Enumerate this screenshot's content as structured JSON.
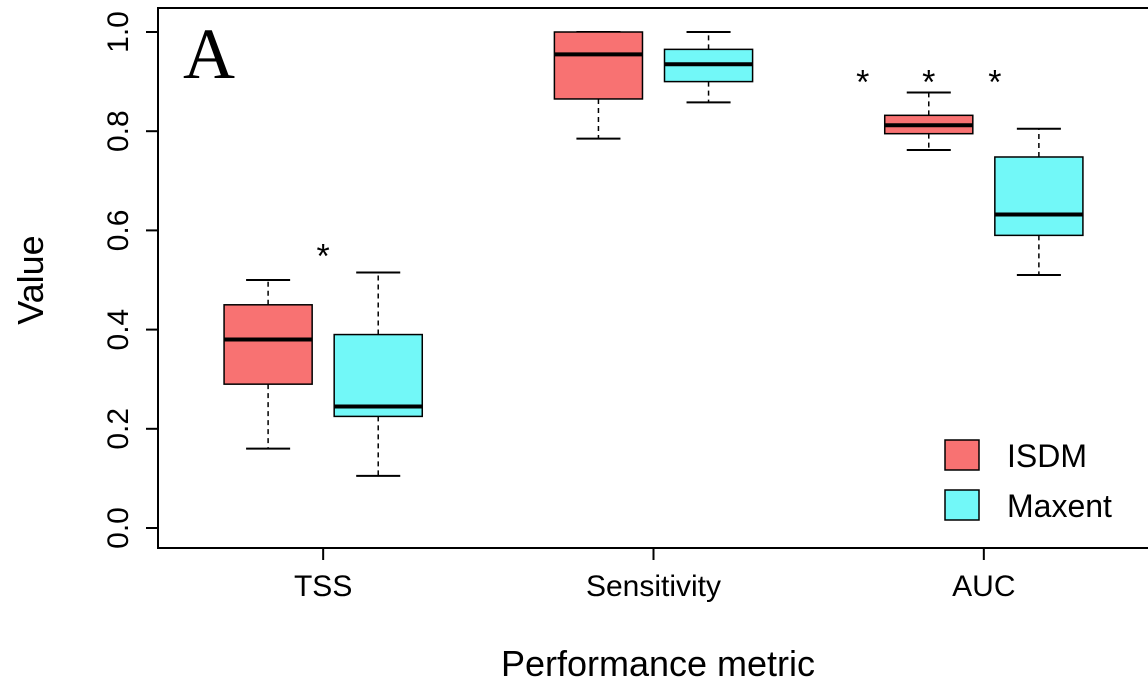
{
  "chart_data": {
    "type": "box",
    "panel_label": "A",
    "xlabel": "Performance metric",
    "ylabel": "Value",
    "ylim": [
      0.0,
      1.0
    ],
    "y_ticks": [
      "0.0",
      "0.2",
      "0.4",
      "0.6",
      "0.8",
      "1.0"
    ],
    "categories": [
      "TSS",
      "Sensitivity",
      "AUC"
    ],
    "legend": {
      "position": "bottom-right"
    },
    "series": [
      {
        "name": "ISDM",
        "color": "#f87272",
        "boxes": [
          {
            "category": "TSS",
            "min": 0.16,
            "q1": 0.29,
            "median": 0.38,
            "q3": 0.45,
            "max": 0.5
          },
          {
            "category": "Sensitivity",
            "min": 0.785,
            "q1": 0.865,
            "median": 0.955,
            "q3": 1.0,
            "max": 1.0
          },
          {
            "category": "AUC",
            "min": 0.762,
            "q1": 0.795,
            "median": 0.812,
            "q3": 0.832,
            "max": 0.878
          }
        ]
      },
      {
        "name": "Maxent",
        "color": "#72f8f8",
        "boxes": [
          {
            "category": "TSS",
            "min": 0.105,
            "q1": 0.225,
            "median": 0.245,
            "q3": 0.39,
            "max": 0.515
          },
          {
            "category": "Sensitivity",
            "min": 0.858,
            "q1": 0.9,
            "median": 0.935,
            "q3": 0.965,
            "max": 1.0
          },
          {
            "category": "AUC",
            "min": 0.51,
            "q1": 0.59,
            "median": 0.632,
            "q3": 0.748,
            "max": 0.805
          }
        ]
      }
    ],
    "annotations": [
      {
        "text": "*",
        "x": 1.5,
        "y": 0.57
      },
      {
        "text": "*",
        "x": 6.4,
        "y": 0.92
      },
      {
        "text": "*",
        "x": 7.0,
        "y": 0.92
      },
      {
        "text": "*",
        "x": 7.6,
        "y": 0.92
      }
    ],
    "box_positions": [
      1,
      2,
      4,
      5,
      7,
      8
    ],
    "category_positions": [
      1.5,
      4.5,
      7.5
    ],
    "xlim": [
      0.0,
      9.1
    ]
  }
}
